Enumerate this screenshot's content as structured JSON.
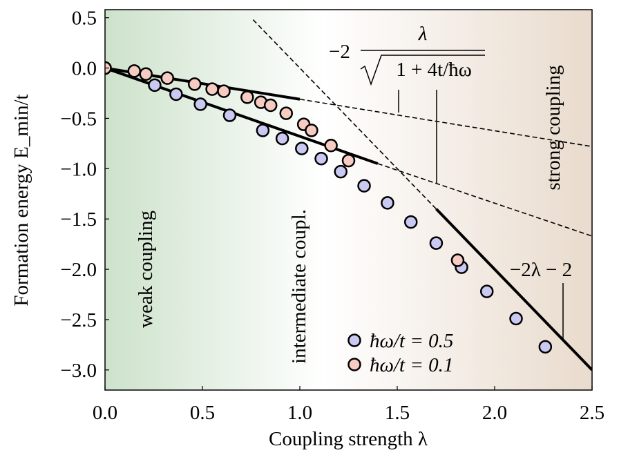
{
  "chart_data": {
    "type": "scatter",
    "xlabel": "Coupling strength λ",
    "ylabel": "Formation energy E_min/t",
    "xlim": [
      0,
      2.5
    ],
    "ylim": [
      -3.2,
      0.58
    ],
    "xticks": [
      {
        "value": 0,
        "label": "0.0"
      },
      {
        "value": 0.5,
        "label": "0.5"
      },
      {
        "value": 1,
        "label": "1.0"
      },
      {
        "value": 1.5,
        "label": "1.5"
      },
      {
        "value": 2,
        "label": "2.0"
      },
      {
        "value": 2.5,
        "label": "2.5"
      }
    ],
    "yticks": [
      {
        "value": 0.5,
        "label": "0.5"
      },
      {
        "value": 0,
        "label": "0.0"
      },
      {
        "value": -0.5,
        "label": "−0.5"
      },
      {
        "value": -1,
        "label": "−1.0"
      },
      {
        "value": -1.5,
        "label": "−1.5"
      },
      {
        "value": -2,
        "label": "−2.0"
      },
      {
        "value": -2.5,
        "label": "−2.5"
      },
      {
        "value": -3,
        "label": "−3.0"
      }
    ],
    "series": [
      {
        "name": "ħω/t = 0.5",
        "color": "#c9c9f2",
        "x": [
          0,
          0.255,
          0.365,
          0.49,
          0.64,
          0.81,
          0.91,
          1.01,
          1.11,
          1.21,
          1.33,
          1.45,
          1.57,
          1.7,
          1.83,
          1.96,
          2.11,
          2.26
        ],
        "values": [
          0,
          -0.17,
          -0.26,
          -0.36,
          -0.47,
          -0.62,
          -0.7,
          -0.8,
          -0.9,
          -1.03,
          -1.17,
          -1.34,
          -1.53,
          -1.74,
          -1.98,
          -2.22,
          -2.49,
          -2.77
        ]
      },
      {
        "name": "ħω/t = 0.1",
        "color": "#f6cbc2",
        "x": [
          0,
          0.15,
          0.21,
          0.32,
          0.46,
          0.55,
          0.61,
          0.73,
          0.8,
          0.85,
          0.93,
          1.02,
          1.06,
          1.16,
          1.25,
          1.81
        ],
        "values": [
          0,
          -0.03,
          -0.06,
          -0.1,
          -0.16,
          -0.21,
          -0.23,
          -0.29,
          -0.34,
          -0.37,
          -0.45,
          -0.56,
          -0.62,
          -0.77,
          -0.92,
          -1.91
        ]
      }
    ],
    "reference_lines": [
      {
        "style": "solid",
        "x": [
          0,
          1.0
        ],
        "values": [
          0,
          -0.31
        ]
      },
      {
        "style": "dashed",
        "x": [
          1.0,
          2.5
        ],
        "values": [
          -0.31,
          -0.78
        ]
      },
      {
        "style": "solid",
        "x": [
          0,
          1.4
        ],
        "values": [
          0,
          -0.95
        ]
      },
      {
        "style": "dashed",
        "x": [
          1.4,
          2.5
        ],
        "values": [
          -0.95,
          -1.67
        ]
      },
      {
        "style": "dashed",
        "x": [
          0.76,
          1.7
        ],
        "values": [
          0.48,
          -1.4
        ]
      },
      {
        "style": "solid",
        "x": [
          1.7,
          2.5
        ],
        "values": [
          -1.4,
          -3.0
        ]
      }
    ],
    "regions": [
      "weak coupling",
      "intermediate coupl.",
      "strong coupling"
    ],
    "formula_weak": {
      "prefix": "−2",
      "numerator": "λ",
      "denominator": "1 + 4t/ħω"
    },
    "formula_strong": "−2λ − 2",
    "legend": "lower right"
  }
}
